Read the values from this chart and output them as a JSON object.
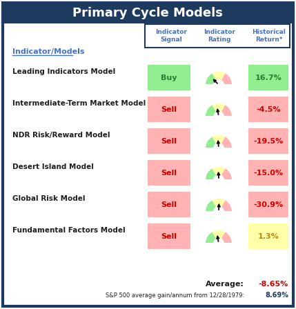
{
  "title": "Primary Cycle Models",
  "title_bg": "#1e3a5f",
  "title_color": "white",
  "border_color": "#1e3a5f",
  "bg_color": "white",
  "header_labels": [
    "Indicator\nSignal",
    "Indicator\nRating",
    "Historical\nReturn*"
  ],
  "header_color": "#4472c4",
  "indicator_models_label": "Indicator/Models",
  "rows": [
    {
      "model": "Leading Indicators Model",
      "signal": "Buy",
      "signal_bg": "#90ee90",
      "signal_color": "#2e7d32",
      "gauge_needle": 135,
      "return_val": "16.7%",
      "return_bg": "#90ee90",
      "return_color": "#2e7d32"
    },
    {
      "model": "Intermediate-Term Market Model",
      "signal": "Sell",
      "signal_bg": "#ffb3b3",
      "signal_color": "#cc0000",
      "gauge_needle": 100,
      "return_val": "-4.5%",
      "return_bg": "#ffb3b3",
      "return_color": "#cc0000"
    },
    {
      "model": "NDR Risk/Reward Model",
      "signal": "Sell",
      "signal_bg": "#ffb3b3",
      "signal_color": "#cc0000",
      "gauge_needle": 95,
      "return_val": "-19.5%",
      "return_bg": "#ffb3b3",
      "return_color": "#cc0000"
    },
    {
      "model": "Desert Island Model",
      "signal": "Sell",
      "signal_bg": "#ffb3b3",
      "signal_color": "#cc0000",
      "gauge_needle": 92,
      "return_val": "-15.0%",
      "return_bg": "#ffb3b3",
      "return_color": "#cc0000"
    },
    {
      "model": "Global Risk Model",
      "signal": "Sell",
      "signal_bg": "#ffb3b3",
      "signal_color": "#cc0000",
      "gauge_needle": 88,
      "return_val": "-30.9%",
      "return_bg": "#ffb3b3",
      "return_color": "#cc0000"
    },
    {
      "model": "Fundamental Factors Model",
      "signal": "Sell",
      "signal_bg": "#ffb3b3",
      "signal_color": "#cc0000",
      "gauge_needle": 100,
      "return_val": "1.3%",
      "return_bg": "#ffffaa",
      "return_color": "#b8860b"
    }
  ],
  "average_label": "Average:",
  "average_val": "-8.65%",
  "average_color": "#cc0000",
  "sp500_label": "S&P 500 average gain/annum from 12/28/1979:",
  "sp500_val": "8.69%",
  "sp500_color": "#1e3a5f"
}
